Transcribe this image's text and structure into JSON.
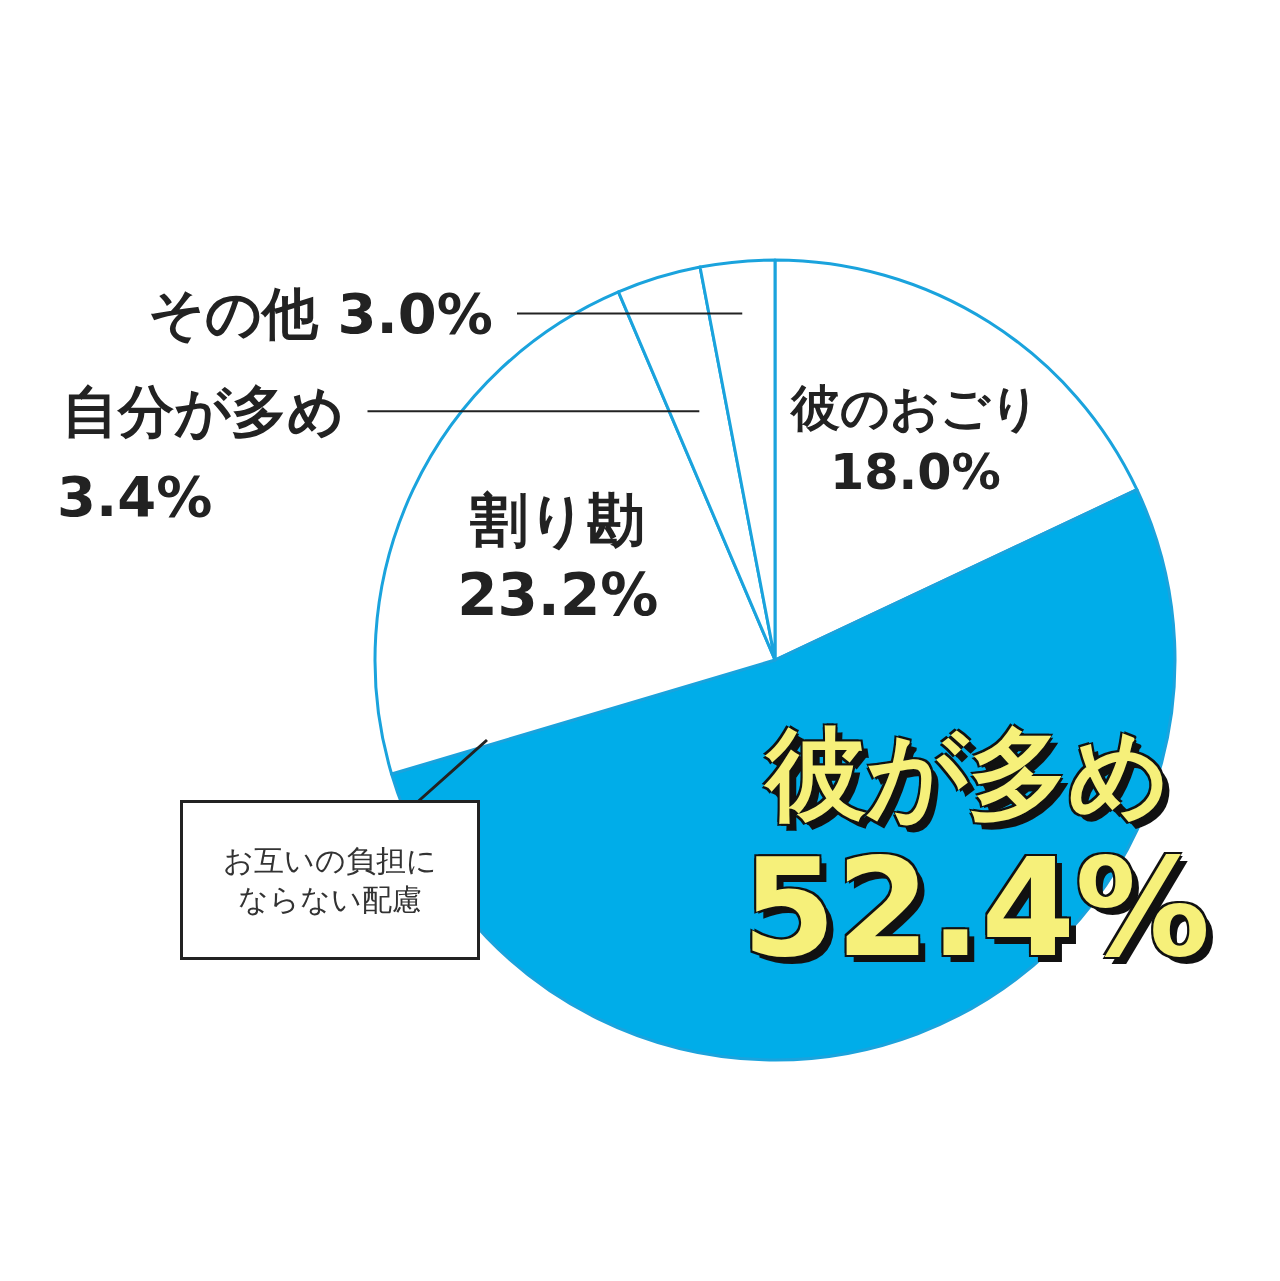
{
  "chart_data": {
    "type": "pie",
    "categories": [
      "彼のおごり",
      "彼が多め",
      "割り勘",
      "自分が多め",
      "その他"
    ],
    "values": [
      18.0,
      52.4,
      23.2,
      3.4,
      3.0
    ],
    "colors": [
      "#ffffff",
      "#00ade9",
      "#ffffff",
      "#ffffff",
      "#ffffff"
    ],
    "value_labels": [
      "18.0%",
      "52.4%",
      "23.2%",
      "3.4%",
      "3.0%"
    ],
    "annotations": [
      "お互いの負担にならない配慮"
    ]
  }
}
